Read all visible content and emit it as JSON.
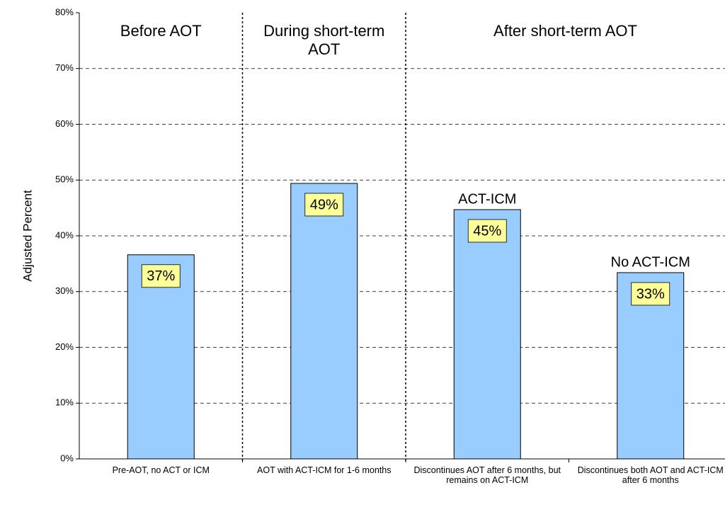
{
  "chart_data": {
    "type": "bar",
    "ylabel": "Adjusted Percent",
    "categories": [
      "Pre-AOT, no ACT or ICM",
      "AOT with ACT-ICM for 1-6 months",
      "Discontinues AOT after 6 months, but remains on ACT-ICM",
      "Discontinues both AOT and ACT-ICM after 6 months"
    ],
    "values": [
      36.6,
      49.4,
      44.7,
      33.4
    ],
    "value_labels": [
      "37%",
      "49%",
      "45%",
      "33%"
    ],
    "color": "#99ccff",
    "ylim": [
      0,
      80
    ],
    "yticks": [
      {
        "value": 0,
        "label": "0%"
      },
      {
        "value": 10,
        "label": "10%"
      },
      {
        "value": 20,
        "label": "20%"
      },
      {
        "value": 30,
        "label": "30%"
      },
      {
        "value": 40,
        "label": "40%"
      },
      {
        "value": 50,
        "label": "50%"
      },
      {
        "value": 60,
        "label": "60%"
      },
      {
        "value": 70,
        "label": "70%"
      },
      {
        "value": 80,
        "label": "80%"
      }
    ],
    "grid": true,
    "sections": [
      "Before AOT",
      "During short-term AOT",
      "After short-term AOT"
    ],
    "annotations": [
      {
        "text": "ACT-ICM",
        "category": 2
      },
      {
        "text": "No ACT-ICM",
        "category": 3
      }
    ]
  }
}
